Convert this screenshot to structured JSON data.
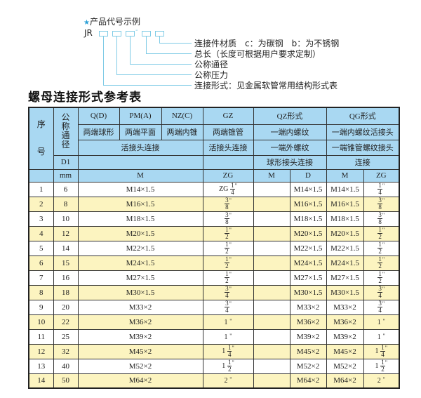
{
  "diagram": {
    "heading": "产品代号示例",
    "prefix": "JR",
    "dash": "-",
    "labels": [
      "连接件材质　c：为碳钢　b：为不锈钢",
      "总长（长度可根据用户要求定制）",
      "公称通径",
      "公称压力",
      "连接形式：见金属软管常用结构形式表"
    ],
    "accent_color": "#7fcbe6"
  },
  "title": "螺母连接形式参考表",
  "header": {
    "seq": "序号",
    "nominal": "公称通径",
    "q": "Q(D)",
    "pm": "PM(A)",
    "nz": "NZ(C)",
    "gz": "GZ",
    "qz": "QZ形式",
    "qg": "QG形式",
    "q2": "两端球形",
    "pm2": "两端平面",
    "nz2": "两端内锥",
    "gz2": "两端锥管",
    "qz2": "一端内螺纹",
    "qg2": "一端内螺纹活接头",
    "union": "活接头连接",
    "gz3": "活接头连接",
    "qz3": "一端外螺纹",
    "qg3": "一端锥管螺纹接头",
    "d1": "D1",
    "qz4": "球形接头连接",
    "qg4": "连接",
    "mm": "mm",
    "m": "M",
    "zg": "ZG",
    "qzm": "M",
    "qzd": "D",
    "qgm": "M",
    "qgzg": "ZG"
  },
  "rows": [
    {
      "no": "1",
      "d1": "6",
      "m": "M14×1.5",
      "gz": {
        "pre": "ZG",
        "num": "1",
        "den": "4"
      },
      "qzm": "",
      "qzd": "M14×1.5",
      "qgm": "M14×1.5",
      "qg": {
        "pre": "",
        "num": "1",
        "den": "4"
      }
    },
    {
      "no": "2",
      "d1": "8",
      "m": "M16×1.5",
      "gz": {
        "pre": "",
        "num": "3",
        "den": "8"
      },
      "qzm": "",
      "qzd": "M16×1.5",
      "qgm": "M16×1.5",
      "qg": {
        "pre": "",
        "num": "3",
        "den": "8"
      }
    },
    {
      "no": "3",
      "d1": "10",
      "m": "M18×1.5",
      "gz": {
        "pre": "",
        "num": "3",
        "den": "8"
      },
      "qzm": "",
      "qzd": "M18×1.5",
      "qgm": "M18×1.5",
      "qg": {
        "pre": "",
        "num": "3",
        "den": "8"
      }
    },
    {
      "no": "4",
      "d1": "12",
      "m": "M20×1.5",
      "gz": {
        "pre": "",
        "num": "1",
        "den": "2"
      },
      "qzm": "",
      "qzd": "M20×1.5",
      "qgm": "M20×1.5",
      "qg": {
        "pre": "",
        "num": "1",
        "den": "2"
      }
    },
    {
      "no": "5",
      "d1": "14",
      "m": "M22×1.5",
      "gz": {
        "pre": "",
        "num": "1",
        "den": "2"
      },
      "qzm": "",
      "qzd": "M22×1.5",
      "qgm": "M22×1.5",
      "qg": {
        "pre": "",
        "num": "1",
        "den": "2"
      }
    },
    {
      "no": "6",
      "d1": "15",
      "m": "M24×1.5",
      "gz": {
        "pre": "",
        "num": "1",
        "den": "2"
      },
      "qzm": "",
      "qzd": "M24×1.5",
      "qgm": "M24×1.5",
      "qg": {
        "pre": "",
        "num": "1",
        "den": "2"
      }
    },
    {
      "no": "7",
      "d1": "16",
      "m": "M27×1.5",
      "gz": {
        "pre": "",
        "num": "1",
        "den": "2"
      },
      "qzm": "",
      "qzd": "M27×1.5",
      "qgm": "M27×1.5",
      "qg": {
        "pre": "",
        "num": "1",
        "den": "2"
      }
    },
    {
      "no": "8",
      "d1": "18",
      "m": "M30×1.5",
      "gz": {
        "pre": "",
        "num": "3",
        "den": "4"
      },
      "qzm": "",
      "qzd": "M30×1.5",
      "qgm": "M30×1.5",
      "qg": {
        "pre": "",
        "num": "3",
        "den": "4"
      }
    },
    {
      "no": "9",
      "d1": "20",
      "m": "M33×2",
      "gz": {
        "pre": "",
        "num": "3",
        "den": "4"
      },
      "qzm": "",
      "qzd": "M33×2",
      "qgm": "M33×2",
      "qg": {
        "pre": "",
        "num": "3",
        "den": "4"
      }
    },
    {
      "no": "10",
      "d1": "22",
      "m": "M36×2",
      "gz": {
        "pre": "1"
      },
      "qzm": "",
      "qzd": "M36×2",
      "qgm": "M36×2",
      "qg": {
        "pre": "1"
      }
    },
    {
      "no": "11",
      "d1": "25",
      "m": "M39×2",
      "gz": {
        "pre": "1"
      },
      "qzm": "",
      "qzd": "M39×2",
      "qgm": "M39×2",
      "qg": {
        "pre": "1"
      }
    },
    {
      "no": "12",
      "d1": "32",
      "m": "M45×2",
      "gz": {
        "pre": "1",
        "num": "1",
        "den": "4"
      },
      "qzm": "",
      "qzd": "M45×2",
      "qgm": "M45×2",
      "qg": {
        "pre": "1",
        "num": "1",
        "den": "4"
      }
    },
    {
      "no": "13",
      "d1": "40",
      "m": "M52×2",
      "gz": {
        "pre": "1",
        "num": "1",
        "den": "2"
      },
      "qzm": "",
      "qzd": "M52×2",
      "qgm": "M52×2",
      "qg": {
        "pre": "1",
        "num": "1",
        "den": "2"
      }
    },
    {
      "no": "14",
      "d1": "50",
      "m": "M64×2",
      "gz": {
        "pre": "2"
      },
      "qzm": "",
      "qzd": "M64×2",
      "qgm": "M64×2",
      "qg": {
        "pre": "2"
      }
    }
  ],
  "inch_mark": "\"",
  "colors": {
    "header_bg": "#a9d8f2",
    "even_row_bg": "#fcf4c0"
  }
}
